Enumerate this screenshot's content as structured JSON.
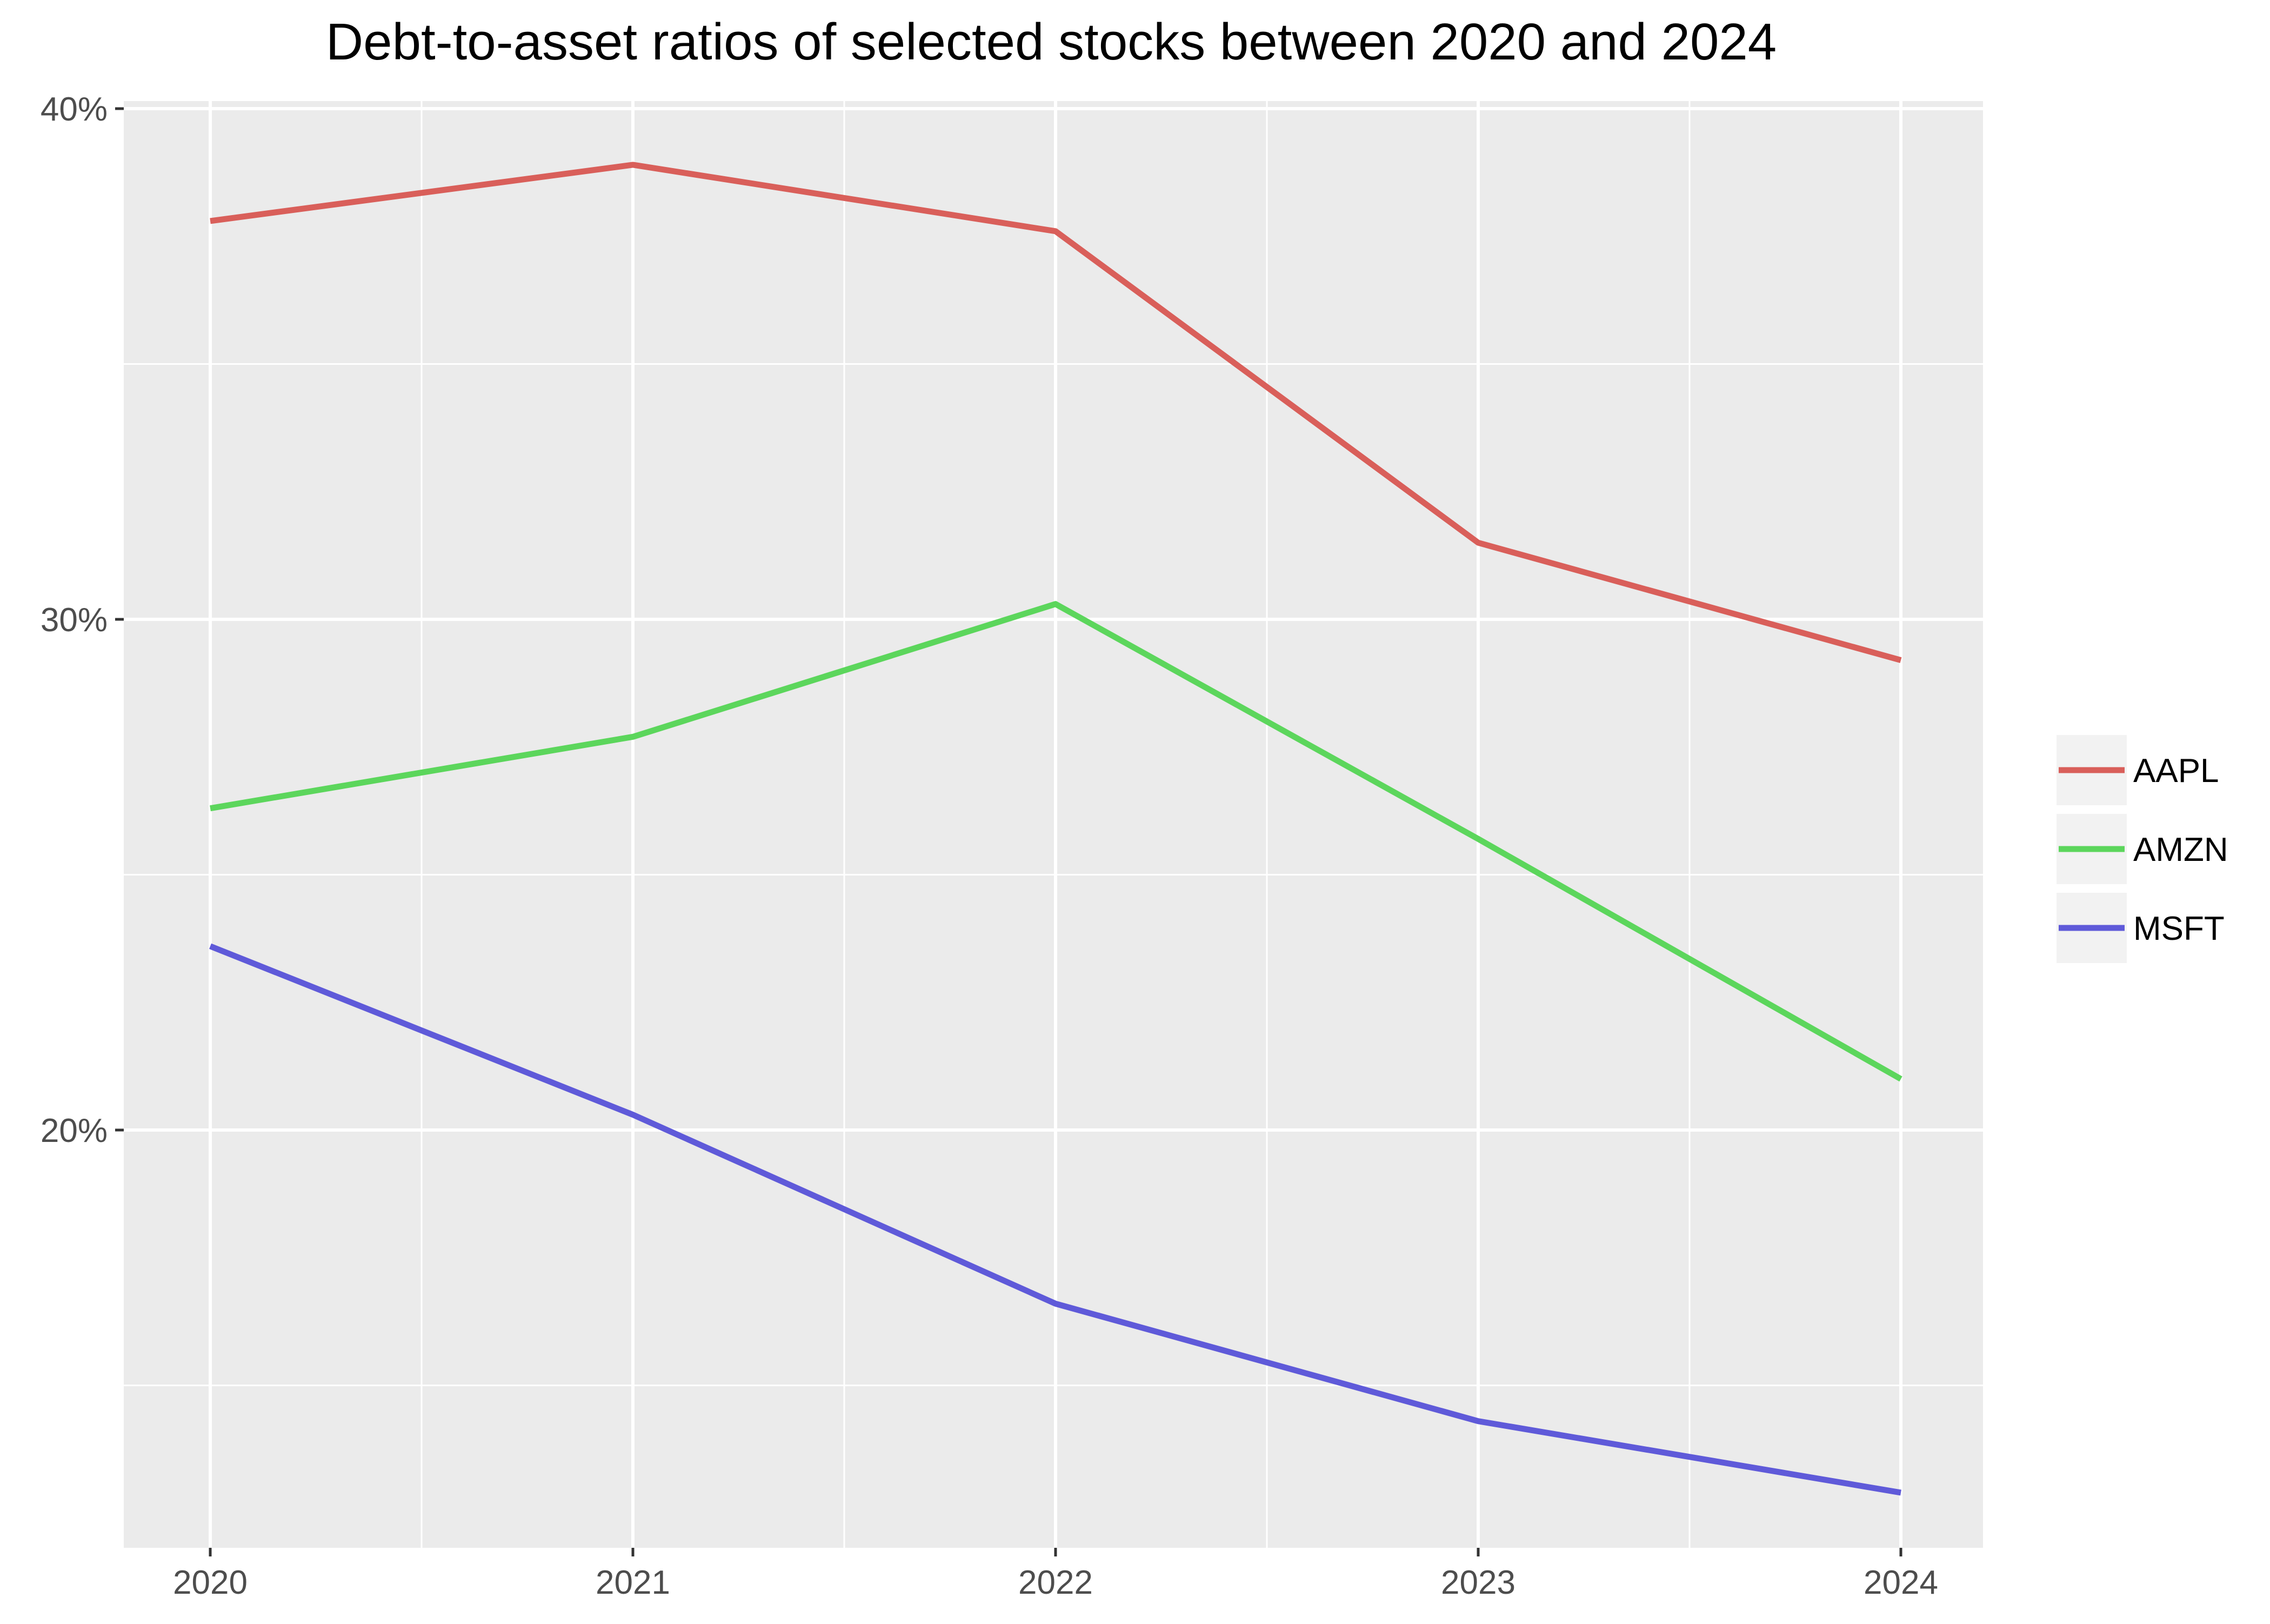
{
  "chart_data": {
    "type": "line",
    "title": "Debt-to-asset ratios of selected stocks between 2020 and 2024",
    "xlabel": "",
    "ylabel": "",
    "x": [
      "2020",
      "2021",
      "2022",
      "2023",
      "2024"
    ],
    "x_ticks": [
      "2020",
      "2021",
      "2022",
      "2023",
      "2024"
    ],
    "y_ticks": [
      {
        "value": 40,
        "label": "40%"
      },
      {
        "value": 30,
        "label": "30%"
      },
      {
        "value": 20,
        "label": "20%"
      }
    ],
    "ylim": [
      12.2,
      40.2
    ],
    "grid": true,
    "legend_position": "right",
    "series": [
      {
        "name": "AAPL",
        "color": "#d95f5a",
        "values": [
          37.8,
          38.9,
          37.6,
          31.5,
          29.2
        ]
      },
      {
        "name": "AMZN",
        "color": "#5cd65c",
        "values": [
          26.3,
          27.7,
          30.3,
          25.7,
          21.0
        ]
      },
      {
        "name": "MSFT",
        "color": "#5f5ad9",
        "values": [
          23.6,
          20.3,
          16.6,
          14.3,
          12.9
        ]
      }
    ]
  },
  "colors": {
    "panel_background": "#ebebeb",
    "grid_line": "#ffffff",
    "axis_text": "#4d4d4d",
    "title_text": "#000000",
    "legend_key_background": "#f2f2f2"
  }
}
